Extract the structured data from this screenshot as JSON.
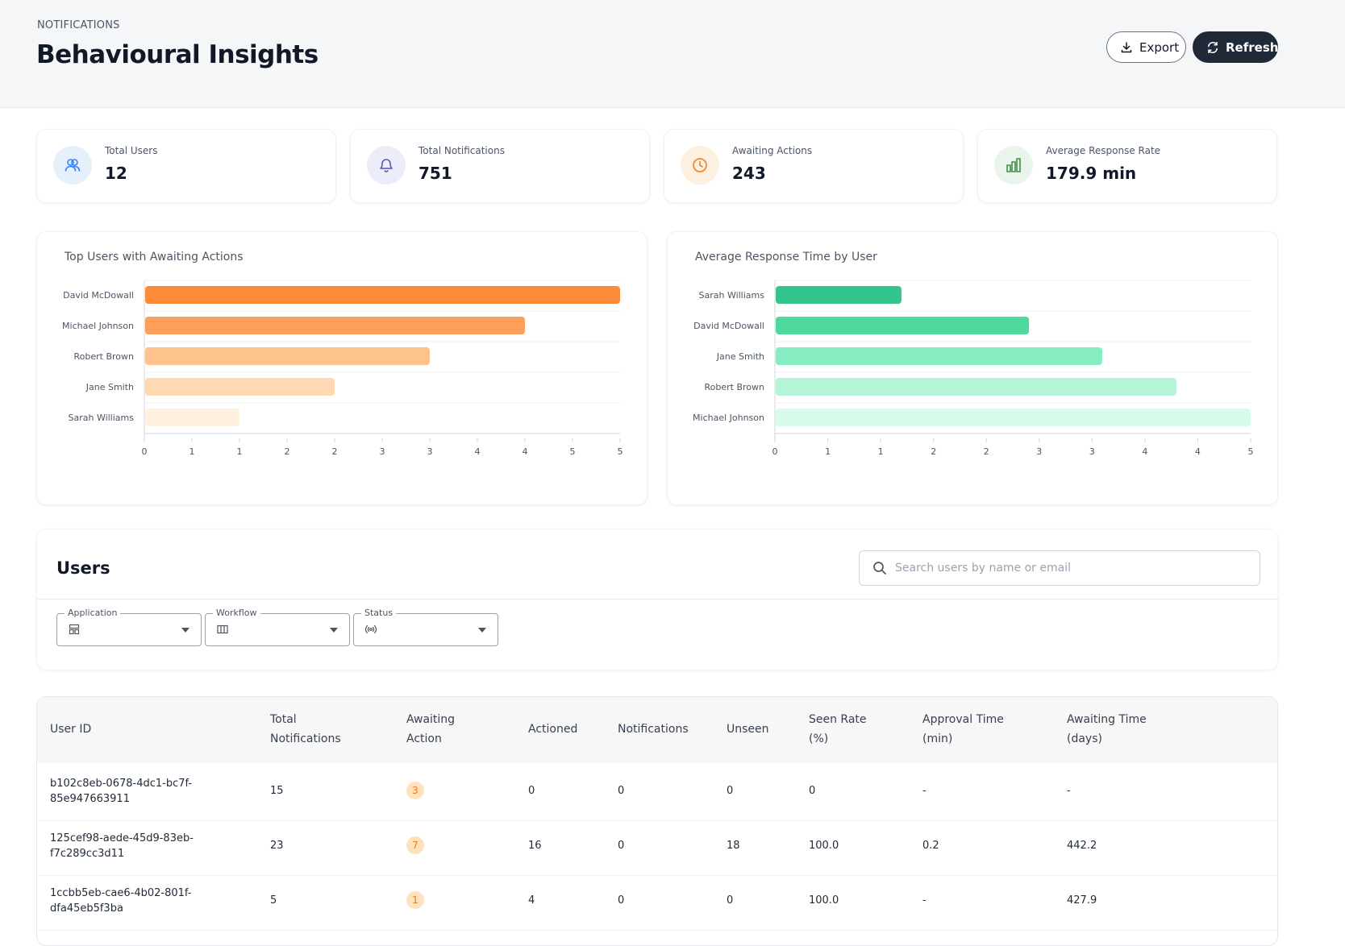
{
  "header": {
    "eyebrow": "NOTIFICATIONS",
    "title": "Behavioural Insights",
    "export_label": "Export",
    "refresh_label": "Refresh"
  },
  "stats": [
    {
      "label": "Total Users",
      "value": "12",
      "icon": "users-icon",
      "color": "#3b82f6",
      "bg": "#e6f0fb"
    },
    {
      "label": "Total Notifications",
      "value": "751",
      "icon": "bell-icon",
      "color": "#4f5bb5",
      "bg": "#ebedf8"
    },
    {
      "label": "Awaiting Actions",
      "value": "243",
      "icon": "clock-icon",
      "color": "#f0852a",
      "bg": "#fdf0e1"
    },
    {
      "label": "Average Response Rate",
      "value": "179.9 min",
      "icon": "bar-chart-icon",
      "color": "#3f8f46",
      "bg": "#e9f4ea"
    }
  ],
  "chart_data": [
    {
      "type": "bar",
      "orientation": "horizontal",
      "title": "Top Users with Awaiting Actions",
      "categories": [
        "David McDowall",
        "Michael Johnson",
        "Robert Brown",
        "Jane Smith",
        "Sarah Williams"
      ],
      "values": [
        5,
        4,
        3,
        2,
        1
      ],
      "bar_colors": [
        "#fb8a3a",
        "#fc9f5b",
        "#fec28c",
        "#fed9b4",
        "#fff0df"
      ],
      "xlim": [
        0,
        5
      ],
      "xticks": [
        0,
        0.5,
        1,
        1.5,
        2,
        2.5,
        3,
        3.5,
        4,
        4.5,
        5
      ],
      "xtick_labels": [
        "0",
        "1",
        "1",
        "2",
        "2",
        "3",
        "3",
        "4",
        "4",
        "5",
        "5"
      ],
      "grid": "horizontal"
    },
    {
      "type": "bar",
      "orientation": "horizontal",
      "title": "Average Response Time by User",
      "categories": [
        "Sarah Williams",
        "David McDowall",
        "Jane Smith",
        "Robert Brown",
        "Michael Johnson"
      ],
      "values": [
        1.33,
        2.67,
        3.44,
        4.22,
        5
      ],
      "bar_colors": [
        "#34c48e",
        "#4dd89d",
        "#86ecc2",
        "#b3f5d6",
        "#d9fbea"
      ],
      "xlim": [
        0,
        5
      ],
      "xticks": [
        0,
        0.556,
        1.111,
        1.667,
        2.222,
        2.778,
        3.333,
        3.889,
        4.444,
        5
      ],
      "xtick_labels": [
        "0",
        "1",
        "1",
        "2",
        "2",
        "3",
        "3",
        "4",
        "4",
        "5"
      ],
      "grid": "horizontal"
    }
  ],
  "users": {
    "title": "Users",
    "search_placeholder": "Search users by name or email",
    "filters": [
      {
        "label": "Application",
        "icon": "application-icon"
      },
      {
        "label": "Workflow",
        "icon": "workflow-icon"
      },
      {
        "label": "Status",
        "icon": "status-icon"
      }
    ]
  },
  "table": {
    "columns": [
      [
        "User ID"
      ],
      [
        "Total",
        "Notifications"
      ],
      [
        "Awaiting",
        "Action"
      ],
      [
        "Actioned"
      ],
      [
        "Notifications"
      ],
      [
        "Unseen"
      ],
      [
        "Seen Rate",
        "(%)"
      ],
      [
        "Approval Time",
        "(min)"
      ],
      [
        "Awaiting Time",
        "(days)"
      ]
    ],
    "rows": [
      {
        "user_id": [
          "b102c8eb-0678-4dc1-bc7f-",
          "85e947663911"
        ],
        "total": "15",
        "awaiting": "3",
        "actioned": "0",
        "notifications": "0",
        "unseen": "0",
        "seen_rate": "0",
        "approval_time": "-",
        "awaiting_time": "-"
      },
      {
        "user_id": [
          "125cef98-aede-45d9-83eb-",
          "f7c289cc3d11"
        ],
        "total": "23",
        "awaiting": "7",
        "actioned": "16",
        "notifications": "0",
        "unseen": "18",
        "seen_rate": "100.0",
        "approval_time": "0.2",
        "awaiting_time": "442.2"
      },
      {
        "user_id": [
          "1ccbb5eb-cae6-4b02-801f-",
          "dfa45eb5f3ba"
        ],
        "total": "5",
        "awaiting": "1",
        "actioned": "4",
        "notifications": "0",
        "unseen": "0",
        "seen_rate": "100.0",
        "approval_time": "-",
        "awaiting_time": "427.9"
      }
    ]
  }
}
